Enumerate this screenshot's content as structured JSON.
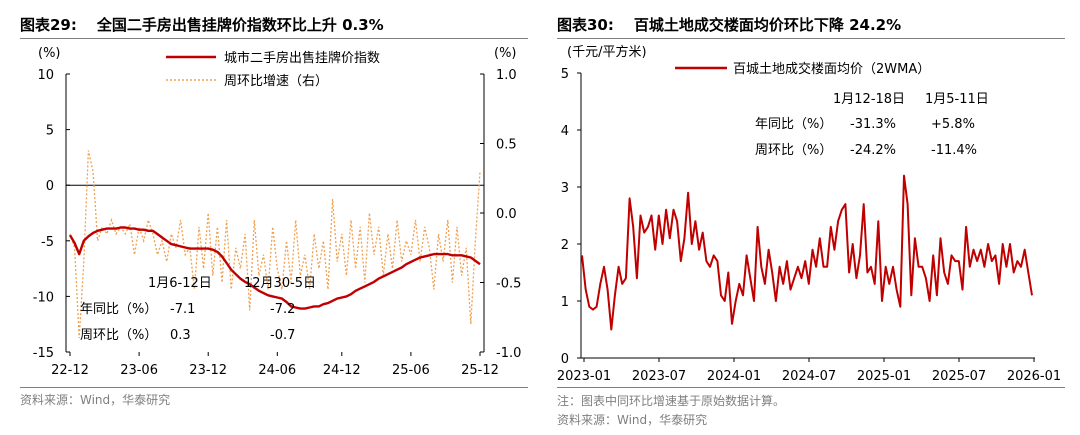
{
  "left_figure": {
    "label": "图表29:",
    "title": "全国二手房出售挂牌价指数环比上升 0.3%",
    "source": "资料来源：Wind，华泰研究"
  },
  "right_figure": {
    "label": "图表30:",
    "title": "百城土地成交楼面均价环比下降 24.2%",
    "note": "注：图表中同环比增速基于原始数据计算。",
    "source": "资料来源：Wind，华泰研究"
  },
  "colors": {
    "red": "#c00000",
    "orange": "#f0a050",
    "axis": "#000000",
    "rule": "#7f7f7f"
  },
  "chart_data": [
    {
      "type": "line",
      "y_left_unit": "(%)",
      "y_right_unit": "(%)",
      "ylim_left": [
        -15,
        10
      ],
      "ylim_right": [
        -1.0,
        1.0
      ],
      "y_ticks_left": [
        "10",
        "5",
        "0",
        "-5",
        "-10",
        "-15"
      ],
      "y_ticks_right": [
        "1.0",
        "0.5",
        "0.0",
        "-0.5",
        "-1.0"
      ],
      "x_ticks": [
        "22-12",
        "23-06",
        "23-12",
        "24-06",
        "24-12",
        "25-06",
        "25-12"
      ],
      "legend": [
        "城市二手房出售挂牌价指数",
        "周环比增速（右）"
      ],
      "legend_position": "top-right",
      "series": [
        {
          "name": "城市二手房出售挂牌价指数",
          "axis": "left",
          "values": [
            -4.5,
            -5.2,
            -6.2,
            -5.0,
            -4.6,
            -4.3,
            -4.1,
            -4.0,
            -3.9,
            -3.9,
            -3.9,
            -3.8,
            -3.8,
            -3.9,
            -3.9,
            -4.0,
            -4.0,
            -4.1,
            -4.1,
            -4.4,
            -4.7,
            -5.0,
            -5.3,
            -5.4,
            -5.5,
            -5.6,
            -5.7,
            -5.7,
            -5.7,
            -5.7,
            -5.7,
            -5.8,
            -6.0,
            -6.4,
            -7.0,
            -7.6,
            -8.0,
            -8.4,
            -8.7,
            -8.9,
            -9.2,
            -9.5,
            -9.7,
            -9.9,
            -10.0,
            -10.1,
            -10.2,
            -10.5,
            -10.9,
            -11.0,
            -11.1,
            -11.1,
            -11.0,
            -10.9,
            -10.9,
            -10.7,
            -10.6,
            -10.4,
            -10.2,
            -10.1,
            -10.0,
            -9.8,
            -9.5,
            -9.3,
            -9.1,
            -8.9,
            -8.7,
            -8.4,
            -8.2,
            -8.0,
            -7.8,
            -7.6,
            -7.4,
            -7.1,
            -6.9,
            -6.7,
            -6.5,
            -6.4,
            -6.3,
            -6.2,
            -6.2,
            -6.2,
            -6.2,
            -6.3,
            -6.3,
            -6.3,
            -6.4,
            -6.5,
            -6.8,
            -7.1
          ]
        },
        {
          "name": "周环比增速（右）",
          "axis": "right",
          "values": [
            -0.15,
            -0.25,
            -0.9,
            -0.35,
            0.45,
            0.3,
            -0.2,
            -0.1,
            -0.15,
            -0.05,
            -0.15,
            -0.1,
            -0.15,
            -0.08,
            -0.3,
            -0.1,
            -0.2,
            -0.05,
            -0.15,
            -0.3,
            -0.2,
            -0.35,
            -0.15,
            -0.25,
            -0.05,
            -0.3,
            -0.25,
            -0.55,
            -0.1,
            -0.4,
            0.0,
            -0.45,
            -0.1,
            -0.5,
            -0.05,
            -0.55,
            -0.25,
            -0.4,
            -0.15,
            -0.7,
            -0.05,
            -0.45,
            -0.3,
            -0.55,
            -0.1,
            -0.4,
            -0.55,
            -0.2,
            -0.5,
            -0.05,
            -0.45,
            -0.3,
            -0.55,
            -0.15,
            -0.4,
            -0.2,
            -0.55,
            0.1,
            -0.35,
            -0.15,
            -0.45,
            -0.05,
            -0.4,
            -0.1,
            -0.5,
            0.0,
            -0.3,
            -0.1,
            -0.45,
            -0.15,
            -0.4,
            -0.05,
            -0.35,
            -0.2,
            -0.3,
            -0.05,
            -0.35,
            -0.1,
            -0.25,
            -0.55,
            -0.15,
            -0.35,
            -0.05,
            -0.5,
            -0.1,
            -0.45,
            -0.25,
            -0.8,
            -0.2,
            0.3
          ]
        }
      ],
      "table": {
        "col_headers": [
          "1月6-12日",
          "12月30-5日"
        ],
        "rows": [
          {
            "label": "年同比（%）",
            "values": [
              "-7.1",
              "-7.2"
            ]
          },
          {
            "label": "周环比（%）",
            "values": [
              "0.3",
              "-0.7"
            ]
          }
        ]
      }
    },
    {
      "type": "line",
      "y_unit": "(千元/平方米)",
      "ylim": [
        0,
        5
      ],
      "y_ticks": [
        "5",
        "4",
        "3",
        "2",
        "1",
        "0"
      ],
      "x_ticks": [
        "2023-01",
        "2023-07",
        "2024-01",
        "2024-07",
        "2025-01",
        "2025-07",
        "2026-01"
      ],
      "legend": [
        "百城土地成交楼面均价（2WMA）"
      ],
      "legend_position": "top-left",
      "series": [
        {
          "name": "百城土地成交楼面均价（2WMA）",
          "values": [
            1.8,
            1.2,
            0.9,
            0.85,
            0.9,
            1.3,
            1.6,
            1.2,
            0.5,
            1.1,
            1.6,
            1.3,
            1.4,
            2.8,
            2.3,
            1.4,
            2.5,
            2.2,
            2.3,
            2.5,
            1.9,
            2.5,
            2.0,
            2.6,
            2.1,
            2.6,
            2.4,
            1.7,
            2.1,
            2.9,
            2.0,
            2.4,
            1.9,
            2.2,
            1.7,
            1.6,
            1.8,
            1.7,
            1.1,
            1.0,
            1.5,
            0.6,
            1.0,
            1.3,
            1.1,
            1.8,
            1.4,
            1.0,
            2.3,
            1.6,
            1.3,
            1.9,
            1.5,
            1.0,
            1.6,
            1.3,
            1.7,
            1.2,
            1.4,
            1.6,
            1.4,
            1.7,
            1.3,
            1.9,
            1.6,
            2.1,
            1.6,
            1.6,
            2.3,
            1.9,
            2.4,
            2.6,
            2.7,
            1.5,
            2.0,
            1.4,
            1.8,
            2.7,
            1.5,
            1.6,
            1.3,
            2.4,
            1.0,
            1.6,
            1.3,
            1.6,
            1.2,
            0.9,
            3.2,
            2.7,
            1.1,
            2.1,
            1.6,
            1.6,
            1.4,
            1.0,
            1.8,
            1.1,
            2.1,
            1.5,
            1.3,
            1.8,
            1.7,
            1.7,
            1.2,
            2.3,
            1.6,
            1.9,
            1.7,
            1.9,
            1.6,
            2.0,
            1.7,
            1.8,
            1.3,
            2.0,
            1.6,
            2.0,
            1.5,
            1.7,
            1.6,
            1.9,
            1.5,
            1.1
          ]
        }
      ],
      "table": {
        "col_headers": [
          "1月12-18日",
          "1月5-11日"
        ],
        "rows": [
          {
            "label": "年同比（%）",
            "values": [
              "-31.3%",
              "+5.8%"
            ]
          },
          {
            "label": "周环比（%）",
            "values": [
              "-24.2%",
              "-11.4%"
            ]
          }
        ]
      }
    }
  ]
}
